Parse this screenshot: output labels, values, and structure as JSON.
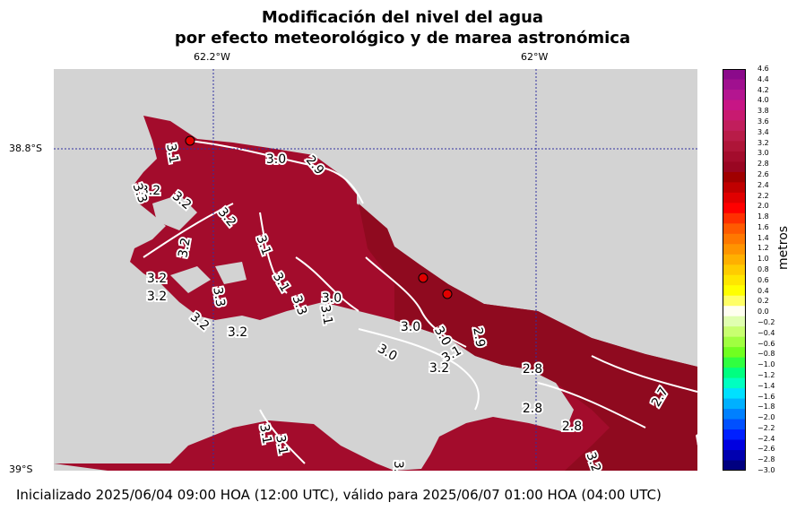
{
  "title_line1": "Modificación del nivel del agua",
  "title_line2": "por efecto meteorológico y de marea astronómica",
  "lon_labels": [
    "62.2°W",
    "62°W"
  ],
  "lat_labels": [
    "38.8°S",
    "39°S"
  ],
  "colorbar": {
    "label": "metros",
    "ticks": [
      "4.6",
      "4.4",
      "4.2",
      "4.0",
      "3.8",
      "3.6",
      "3.4",
      "3.2",
      "3.0",
      "2.8",
      "2.6",
      "2.4",
      "2.2",
      "2.0",
      "1.8",
      "1.6",
      "1.4",
      "1.2",
      "1.0",
      "0.8",
      "0.6",
      "0.4",
      "0.2",
      "0.0",
      "−0.2",
      "−0.4",
      "−0.6",
      "−0.8",
      "−1.0",
      "−1.2",
      "−1.4",
      "−1.6",
      "−1.8",
      "−2.0",
      "−2.2",
      "−2.4",
      "−2.6",
      "−2.8",
      "−3.0"
    ],
    "colors": [
      "#8b0a8b",
      "#a0108f",
      "#b41590",
      "#c71585",
      "#c81a70",
      "#c11e5c",
      "#b81c48",
      "#ae1538",
      "#a30c2c",
      "#990622",
      "#a00000",
      "#c00000",
      "#e00000",
      "#ff0000",
      "#ff3000",
      "#ff5a00",
      "#ff7800",
      "#ff9400",
      "#ffb000",
      "#ffcc00",
      "#ffe600",
      "#ffff00",
      "#ffff66",
      "#fffff0",
      "#e0ffb0",
      "#c8ff70",
      "#a0ff40",
      "#70ff20",
      "#30ff40",
      "#00ff80",
      "#00ffc0",
      "#00e0ff",
      "#00b0ff",
      "#0080ff",
      "#0050ff",
      "#0020ff",
      "#0000e0",
      "#0000b0",
      "#000080"
    ]
  },
  "contour_labels": [
    "3.0",
    "2.9",
    "3.1",
    "3.2",
    "3.3",
    "3.2",
    "3.2",
    "3.2",
    "3.1",
    "3.1",
    "3.3",
    "3.2",
    "3.2",
    "3.0",
    "3.1",
    "3.3",
    "3.2",
    "3.2",
    "3.0",
    "3.0",
    "2.9",
    "3.0",
    "3.1",
    "3.2",
    "2.8",
    "2.7",
    "2.8",
    "2.8",
    "3.2",
    "3.1",
    "3.1",
    "3.0",
    "2.8"
  ],
  "footer": "Inicializado 2025/06/04 09:00 HOA (12:00 UTC), válido para 2025/06/07 01:00 HOA (04:00 UTC)",
  "colors": {
    "land": "#d3d3d3",
    "water_high": "#a50f3a",
    "water_mid": "#8f0a1f",
    "gridline": "#3030a0",
    "contour": "#ffffff",
    "station": "#e00000"
  },
  "stations": 3
}
